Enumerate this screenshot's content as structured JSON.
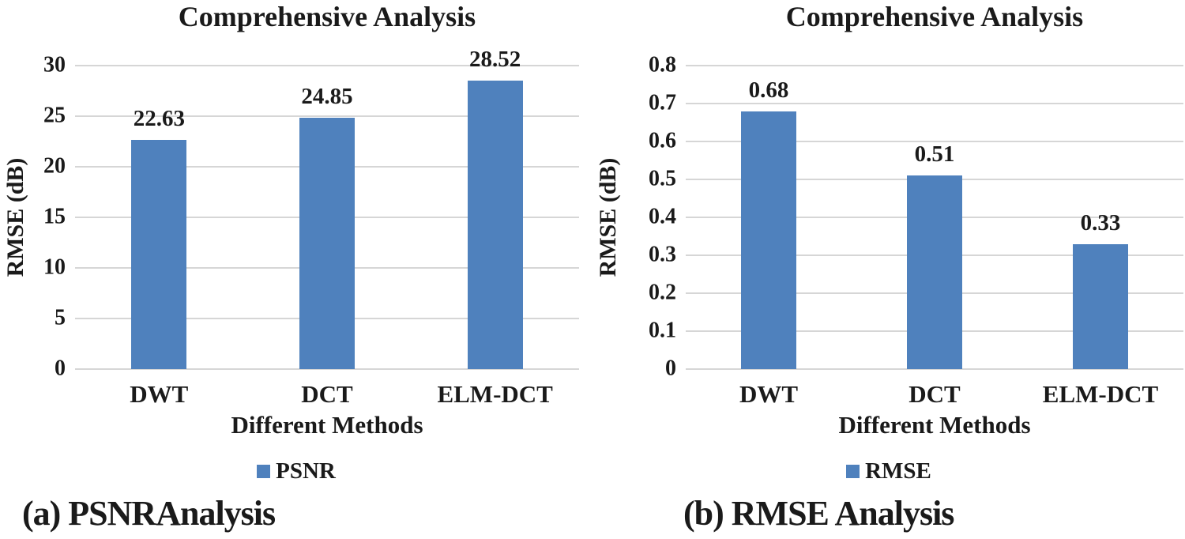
{
  "colors": {
    "bar": "#4F81BD",
    "gridline": "#D6D6D6",
    "text": "#1A1A1A",
    "background": "#FFFFFF"
  },
  "chart_data": [
    {
      "type": "bar",
      "title": "Comprehensive Analysis",
      "categories": [
        "DWT",
        "DCT",
        "ELM-DCT"
      ],
      "values": [
        22.63,
        24.85,
        28.52
      ],
      "value_labels": [
        "22.63",
        "24.85",
        "28.52"
      ],
      "xlabel": "Different Methods",
      "ylabel": "RMSE (dB)",
      "ylim": [
        0,
        30
      ],
      "ytick_step": 5,
      "yticks": [
        "0",
        "5",
        "10",
        "15",
        "20",
        "25",
        "30"
      ],
      "grid": true,
      "legend": {
        "label": "PSNR",
        "position": "bottom"
      },
      "bar_color": "#4F81BD",
      "caption": "(a) PSNRAnalysis"
    },
    {
      "type": "bar",
      "title": "Comprehensive Analysis",
      "categories": [
        "DWT",
        "DCT",
        "ELM-DCT"
      ],
      "values": [
        0.68,
        0.51,
        0.33
      ],
      "value_labels": [
        "0.68",
        "0.51",
        "0.33"
      ],
      "xlabel": "Different Methods",
      "ylabel": "RMSE (dB)",
      "ylim": [
        0,
        0.8
      ],
      "ytick_step": 0.1,
      "yticks": [
        "0",
        "0.1",
        "0.2",
        "0.3",
        "0.4",
        "0.5",
        "0.6",
        "0.7",
        "0.8"
      ],
      "grid": true,
      "legend": {
        "label": "RMSE",
        "position": "bottom"
      },
      "bar_color": "#4F81BD",
      "caption": "(b) RMSE Analysis"
    }
  ]
}
